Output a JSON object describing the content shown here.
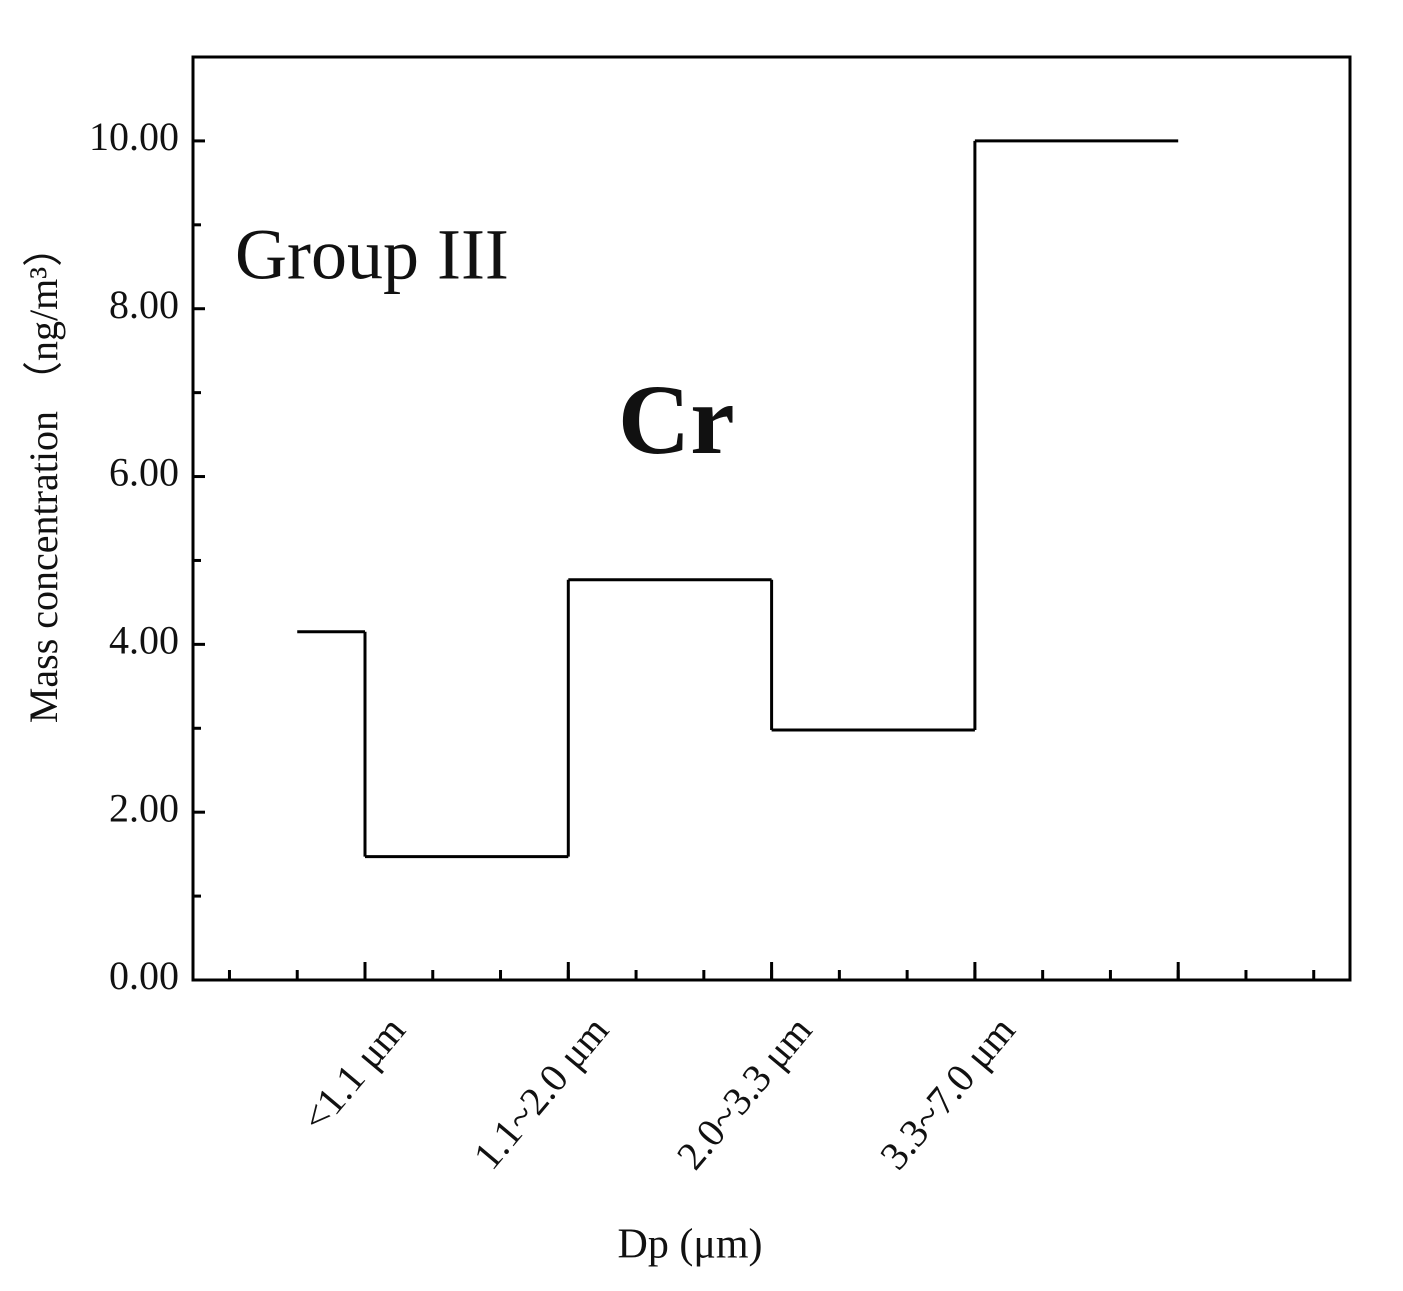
{
  "chart_data": {
    "type": "step",
    "annotations": [
      "Group  III",
      "Cr"
    ],
    "xlabel": "Dp (μm)",
    "ylabel": "Mass concentration （ng/m³）",
    "categories": [
      "<1.1 μm",
      "1.1~2.0 μm",
      "2.0~3.3 μm",
      "3.3~7.0 μm",
      null
    ],
    "values": [
      4.15,
      1.47,
      4.77,
      2.98,
      10.0
    ],
    "color": "#000000",
    "ylim": [
      0,
      11
    ],
    "yticks": [
      {
        "value": 0,
        "label": "0.00"
      },
      {
        "value": 2,
        "label": "2.00"
      },
      {
        "value": 4,
        "label": "4.00"
      },
      {
        "value": 6,
        "label": "6.00"
      },
      {
        "value": 8,
        "label": "8.00"
      },
      {
        "value": 10,
        "label": "10.00"
      }
    ],
    "grid": false
  }
}
